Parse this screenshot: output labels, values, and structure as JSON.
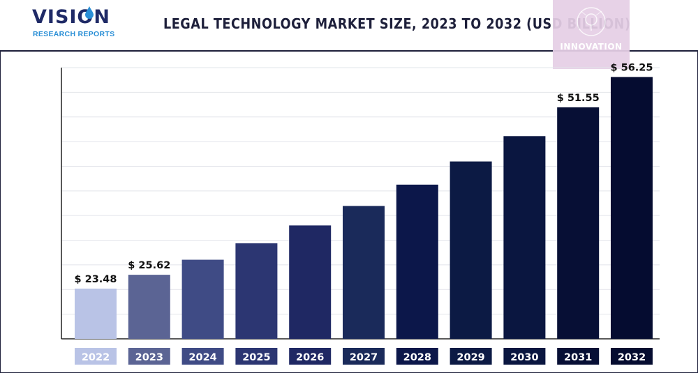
{
  "logo": {
    "main": "VISION",
    "sub": "RESEARCH REPORTS"
  },
  "badge": {
    "label": "INNOVATION"
  },
  "chart_data": {
    "type": "bar",
    "title": "LEGAL TECHNOLOGY MARKET SIZE, 2023 TO 2032 (USD BILLION)",
    "xlabel": "",
    "ylabel": "",
    "categories": [
      "2022",
      "2023",
      "2024",
      "2025",
      "2026",
      "2027",
      "2028",
      "2029",
      "2030",
      "2031",
      "2032"
    ],
    "values": [
      23.48,
      25.62,
      27.95,
      30.49,
      33.26,
      36.28,
      39.58,
      43.17,
      47.09,
      51.55,
      56.25
    ],
    "data_labels": [
      "$ 23.48",
      "$ 25.62",
      "",
      "",
      "",
      "",
      "",
      "",
      "",
      "$ 51.55",
      "$ 56.25"
    ],
    "bar_colors": [
      "#b9c3e6",
      "#5b6494",
      "#3f4b85",
      "#2c3672",
      "#1f2863",
      "#1a2a5a",
      "#0c174a",
      "#0c1a44",
      "#0a1640",
      "#070f35",
      "#050c30"
    ],
    "label_colors": [
      "#b9c3e6",
      "#5b6494",
      "#3f4b85",
      "#2c3672",
      "#1f2863",
      "#1a2a5a",
      "#0c174a",
      "#0c1a44",
      "#0a1640",
      "#070f35",
      "#050c30"
    ],
    "ylim": [
      15.7,
      57.7
    ],
    "grid": true,
    "legend": "none"
  }
}
